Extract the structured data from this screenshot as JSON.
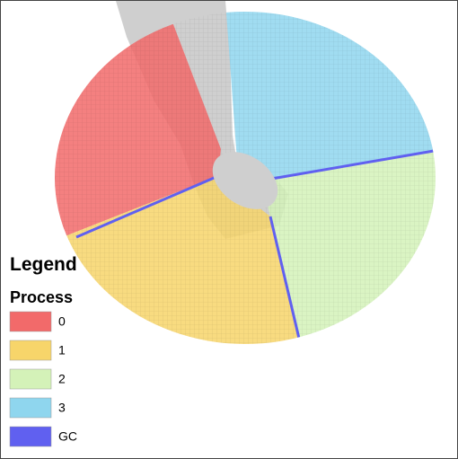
{
  "legend": {
    "title": "Legend",
    "subtitle": "Process",
    "items": [
      {
        "label": "0",
        "color": "#f26a6a"
      },
      {
        "label": "1",
        "color": "#f7d56a"
      },
      {
        "label": "2",
        "color": "#d4f2b8"
      },
      {
        "label": "3",
        "color": "#8fd6ee"
      },
      {
        "label": "GC",
        "color": "#6060f0"
      }
    ]
  }
}
